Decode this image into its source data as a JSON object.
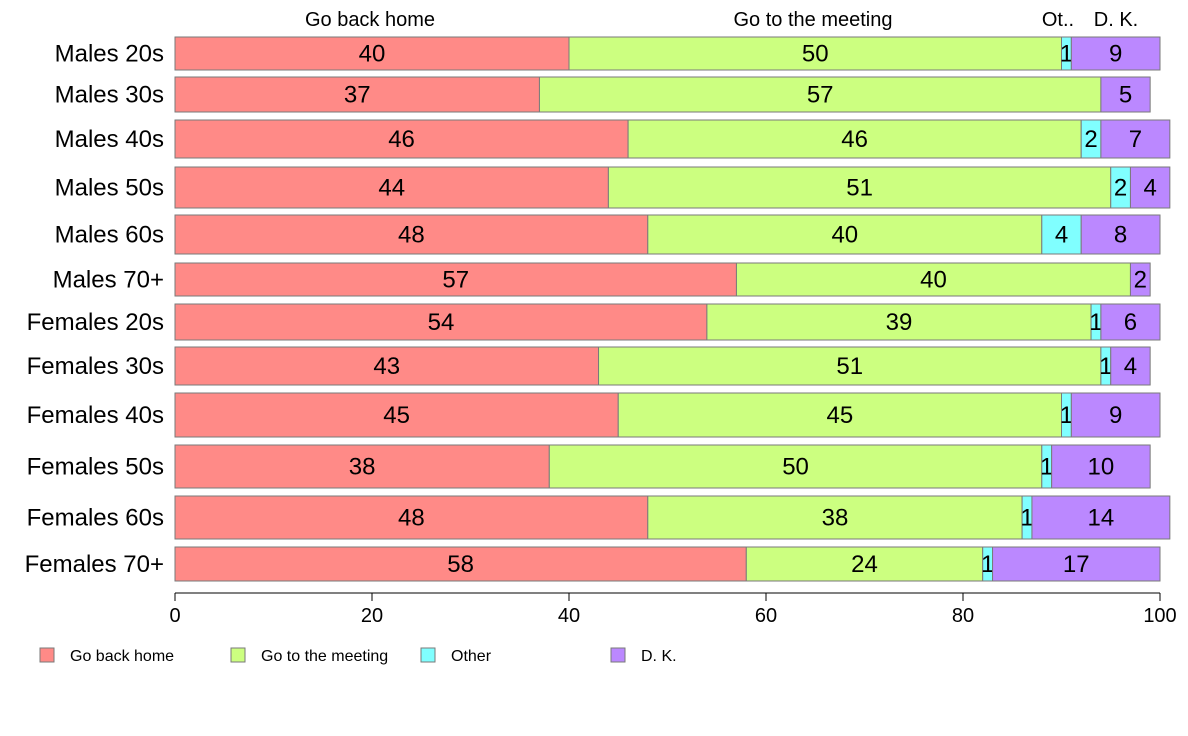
{
  "chart_data": {
    "type": "bar",
    "orientation": "horizontal",
    "stacked": true,
    "categories": [
      "Males 20s",
      "Males 30s",
      "Males 40s",
      "Males 50s",
      "Males 60s",
      "Males 70+",
      "Females 20s",
      "Females 30s",
      "Females 40s",
      "Females 50s",
      "Females 60s",
      "Females 70+"
    ],
    "series": [
      {
        "name": "Go back home",
        "color": "#ff8a87",
        "values": [
          40,
          37,
          46,
          44,
          48,
          57,
          54,
          43,
          45,
          38,
          48,
          58
        ]
      },
      {
        "name": "Go to the meeting",
        "color": "#ccff80",
        "values": [
          50,
          57,
          46,
          51,
          40,
          40,
          39,
          51,
          45,
          50,
          38,
          24
        ]
      },
      {
        "name": "Other",
        "color": "#80ffff",
        "values": [
          1,
          0,
          2,
          2,
          4,
          0,
          1,
          1,
          1,
          1,
          1,
          1
        ]
      },
      {
        "name": "D. K.",
        "color": "#bb88ff",
        "values": [
          9,
          5,
          7,
          4,
          8,
          2,
          6,
          4,
          9,
          10,
          14,
          17
        ]
      }
    ],
    "segment_labels": [
      [
        "40",
        "50",
        "1",
        "9"
      ],
      [
        "37",
        "57",
        "",
        "5"
      ],
      [
        "46",
        "46",
        "2",
        "7"
      ],
      [
        "44",
        "51",
        "2",
        "4"
      ],
      [
        "48",
        "40",
        "4",
        "8"
      ],
      [
        "57",
        "40",
        "",
        "2"
      ],
      [
        "54",
        "39",
        "1",
        "6"
      ],
      [
        "43",
        "51",
        "1",
        "4"
      ],
      [
        "45",
        "45",
        "1",
        "9"
      ],
      [
        "38",
        "50",
        "1",
        "10"
      ],
      [
        "48",
        "38",
        "1",
        "14"
      ],
      [
        "58",
        "24",
        "1",
        "17"
      ]
    ],
    "top_labels": [
      "Go back home",
      "Go to the meeting",
      "Ot..",
      "D. K."
    ],
    "xlim": [
      0,
      100
    ],
    "xticks": [
      0,
      20,
      40,
      60,
      80,
      100
    ],
    "xtick_labels": [
      "0",
      "20",
      "40",
      "60",
      "80",
      "100"
    ],
    "grid": false,
    "legend": {
      "position": "bottom-left",
      "items": [
        "Go back home",
        "Go to the meeting",
        "Other",
        "D. K."
      ]
    }
  }
}
